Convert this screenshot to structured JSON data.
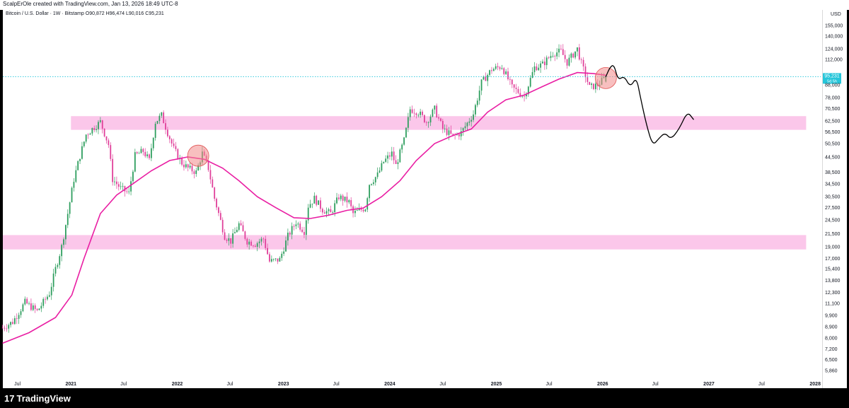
{
  "header": {
    "attribution": "ScalpErOle created with TradingView.com, Jan 13, 2026 18:49 UTC-8",
    "symbol_info": "Bitcoin / U.S. Dollar · 1W · Bitstamp  O90,872  H96,474  L90,016  C95,231"
  },
  "footer": {
    "logo_text": "TradingView",
    "logo_mark": "17"
  },
  "chart_data": {
    "type": "candlestick",
    "symbol": "Bitcoin / U.S. Dollar",
    "interval": "1W",
    "exchange": "Bitstamp",
    "ohlc": {
      "open": 90872,
      "high": 96474,
      "low": 90016,
      "close": 95231
    },
    "y_scale": "log",
    "y_unit": "USD",
    "ylim": [
      5200,
      170000
    ],
    "xlim": [
      "2020-05-12",
      "2028-01-20"
    ],
    "y_ticks": [
      155000,
      140000,
      124000,
      112000,
      100000,
      88000,
      78000,
      70500,
      62500,
      56500,
      50500,
      44500,
      38500,
      34500,
      30500,
      27500,
      24500,
      21500,
      19000,
      17000,
      15400,
      13800,
      12300,
      11100,
      9900,
      8900,
      8000,
      7200,
      6500,
      5860
    ],
    "y_tick_labels": [
      "155,000",
      "140,000",
      "124,000",
      "112,000",
      "100,000",
      "88,000",
      "78,000",
      "70,500",
      "62,500",
      "56,500",
      "50,500",
      "44,500",
      "38,500",
      "34,500",
      "30,500",
      "27,500",
      "24,500",
      "21,500",
      "19,000",
      "17,000",
      "15,400",
      "13,800",
      "12,300",
      "11,100",
      "9,900",
      "8,900",
      "8,000",
      "7,200",
      "6,500",
      "5,860"
    ],
    "x_ticks": [
      {
        "date": "2020-07-01",
        "label": "Jul",
        "bold": false
      },
      {
        "date": "2021-01-01",
        "label": "2021",
        "bold": true
      },
      {
        "date": "2021-07-01",
        "label": "Jul",
        "bold": false
      },
      {
        "date": "2022-01-01",
        "label": "2022",
        "bold": true
      },
      {
        "date": "2022-07-01",
        "label": "Jul",
        "bold": false
      },
      {
        "date": "2023-01-01",
        "label": "2023",
        "bold": true
      },
      {
        "date": "2023-07-01",
        "label": "Jul",
        "bold": false
      },
      {
        "date": "2024-01-01",
        "label": "2024",
        "bold": true
      },
      {
        "date": "2024-07-01",
        "label": "Jul",
        "bold": false
      },
      {
        "date": "2025-01-01",
        "label": "2025",
        "bold": true
      },
      {
        "date": "2025-07-01",
        "label": "Jul",
        "bold": false
      },
      {
        "date": "2026-01-01",
        "label": "2026",
        "bold": true
      },
      {
        "date": "2026-07-01",
        "label": "Jul",
        "bold": false
      },
      {
        "date": "2027-01-01",
        "label": "2027",
        "bold": true
      },
      {
        "date": "2027-07-01",
        "label": "Jul",
        "bold": false
      },
      {
        "date": "2028-01-01",
        "label": "2028",
        "bold": true
      }
    ],
    "price_path": [
      [
        "2020-05-11",
        8800
      ],
      [
        "2020-06-15",
        9300
      ],
      [
        "2020-07-27",
        11200
      ],
      [
        "2020-09-07",
        10300
      ],
      [
        "2020-10-19",
        12200
      ],
      [
        "2020-11-09",
        15400
      ],
      [
        "2020-11-30",
        19000
      ],
      [
        "2020-12-21",
        26000
      ],
      [
        "2021-01-11",
        36000
      ],
      [
        "2021-02-01",
        45000
      ],
      [
        "2021-02-22",
        55000
      ],
      [
        "2021-03-15",
        58000
      ],
      [
        "2021-04-12",
        62000
      ],
      [
        "2021-05-10",
        50000
      ],
      [
        "2021-05-24",
        36000
      ],
      [
        "2021-06-21",
        33000
      ],
      [
        "2021-07-19",
        31500
      ],
      [
        "2021-08-09",
        45000
      ],
      [
        "2021-09-06",
        47000
      ],
      [
        "2021-09-27",
        43000
      ],
      [
        "2021-10-18",
        62000
      ],
      [
        "2021-11-08",
        66000
      ],
      [
        "2021-11-29",
        56000
      ],
      [
        "2021-12-20",
        48000
      ],
      [
        "2022-01-17",
        42000
      ],
      [
        "2022-02-07",
        40000
      ],
      [
        "2022-03-07",
        38500
      ],
      [
        "2022-03-28",
        46000
      ],
      [
        "2022-04-18",
        40000
      ],
      [
        "2022-05-09",
        30000
      ],
      [
        "2022-06-13",
        21000
      ],
      [
        "2022-07-04",
        20000
      ],
      [
        "2022-08-01",
        23500
      ],
      [
        "2022-08-29",
        20000
      ],
      [
        "2022-09-26",
        19500
      ],
      [
        "2022-10-24",
        20500
      ],
      [
        "2022-11-14",
        16500
      ],
      [
        "2022-12-19",
        16800
      ],
      [
        "2023-01-16",
        21000
      ],
      [
        "2023-02-13",
        24000
      ],
      [
        "2023-03-13",
        22000
      ],
      [
        "2023-03-27",
        28000
      ],
      [
        "2023-04-17",
        30000
      ],
      [
        "2023-05-15",
        27000
      ],
      [
        "2023-06-12",
        26000
      ],
      [
        "2023-07-10",
        30500
      ],
      [
        "2023-08-14",
        29000
      ],
      [
        "2023-08-28",
        26000
      ],
      [
        "2023-10-09",
        27500
      ],
      [
        "2023-10-23",
        34500
      ],
      [
        "2023-11-20",
        37500
      ],
      [
        "2023-12-11",
        42500
      ],
      [
        "2024-01-08",
        46000
      ],
      [
        "2024-01-22",
        41000
      ],
      [
        "2024-02-19",
        52000
      ],
      [
        "2024-03-11",
        70000
      ],
      [
        "2024-04-08",
        68000
      ],
      [
        "2024-05-06",
        62000
      ],
      [
        "2024-06-03",
        70000
      ],
      [
        "2024-07-01",
        58000
      ],
      [
        "2024-08-05",
        54000
      ],
      [
        "2024-09-02",
        56000
      ],
      [
        "2024-10-14",
        67000
      ],
      [
        "2024-11-11",
        90000
      ],
      [
        "2024-12-16",
        102000
      ],
      [
        "2025-01-20",
        105000
      ],
      [
        "2025-02-24",
        86000
      ],
      [
        "2025-04-07",
        79000
      ],
      [
        "2025-05-12",
        104000
      ],
      [
        "2025-06-09",
        107000
      ],
      [
        "2025-07-14",
        119000
      ],
      [
        "2025-08-11",
        121000
      ],
      [
        "2025-09-01",
        109000
      ],
      [
        "2025-10-06",
        124000
      ],
      [
        "2025-10-20",
        108000
      ],
      [
        "2025-11-17",
        86000
      ],
      [
        "2025-12-15",
        88000
      ],
      [
        "2026-01-12",
        95231
      ]
    ],
    "moving_average": [
      [
        "2020-05-11",
        7600
      ],
      [
        "2020-08-10",
        8400
      ],
      [
        "2020-11-09",
        9700
      ],
      [
        "2021-01-04",
        12000
      ],
      [
        "2021-02-15",
        17000
      ],
      [
        "2021-04-12",
        26000
      ],
      [
        "2021-06-07",
        31000
      ],
      [
        "2021-08-02",
        34500
      ],
      [
        "2021-10-04",
        39000
      ],
      [
        "2021-12-06",
        43000
      ],
      [
        "2022-02-07",
        44500
      ],
      [
        "2022-04-04",
        43500
      ],
      [
        "2022-06-06",
        40000
      ],
      [
        "2022-08-01",
        35500
      ],
      [
        "2022-10-03",
        30500
      ],
      [
        "2022-12-05",
        27500
      ],
      [
        "2023-02-06",
        25000
      ],
      [
        "2023-04-03",
        24800
      ],
      [
        "2023-06-05",
        25600
      ],
      [
        "2023-08-07",
        26800
      ],
      [
        "2023-10-02",
        27400
      ],
      [
        "2023-12-04",
        30500
      ],
      [
        "2024-02-05",
        35500
      ],
      [
        "2024-04-01",
        43000
      ],
      [
        "2024-06-03",
        50500
      ],
      [
        "2024-08-05",
        54500
      ],
      [
        "2024-10-07",
        58000
      ],
      [
        "2024-12-02",
        68000
      ],
      [
        "2025-02-03",
        76500
      ],
      [
        "2025-04-07",
        80000
      ],
      [
        "2025-06-02",
        86000
      ],
      [
        "2025-08-04",
        93000
      ],
      [
        "2025-10-06",
        99000
      ],
      [
        "2025-12-01",
        98000
      ],
      [
        "2026-01-12",
        96500
      ]
    ],
    "projection_path": [
      [
        "2026-01-12",
        95231
      ],
      [
        "2026-01-26",
        104000
      ],
      [
        "2026-02-09",
        107000
      ],
      [
        "2026-02-23",
        92000
      ],
      [
        "2026-03-16",
        96000
      ],
      [
        "2026-04-06",
        86000
      ],
      [
        "2026-04-27",
        95000
      ],
      [
        "2026-05-11",
        78000
      ],
      [
        "2026-06-01",
        60000
      ],
      [
        "2026-06-22",
        49500
      ],
      [
        "2026-07-13",
        53000
      ],
      [
        "2026-08-03",
        56000
      ],
      [
        "2026-08-24",
        52500
      ],
      [
        "2026-09-21",
        58000
      ],
      [
        "2026-10-19",
        68500
      ],
      [
        "2026-11-09",
        63500
      ]
    ],
    "zones": [
      {
        "from": 57500,
        "to": 65500,
        "x_start": "2021-01-01",
        "x_end": "2027-12-01"
      },
      {
        "from": 18500,
        "to": 21200,
        "x_start": "2020-05-12",
        "x_end": "2027-12-01"
      }
    ],
    "highlights": [
      {
        "date": "2022-03-14",
        "value": 45000
      },
      {
        "date": "2026-01-12",
        "value": 94000
      }
    ],
    "last_price": {
      "value": 95231,
      "label": "95,231",
      "countdown": "5d 5h"
    },
    "colors": {
      "up": "#26a69a",
      "down": "#ef5fa7",
      "candle_up": "#2e9e5e",
      "candle_down": "#e0409a",
      "ma": "#e91ea3",
      "zone": "#fbc7ea",
      "projection": "#000000",
      "highlight": "#f28b8b",
      "price_tag": "#26c6da"
    },
    "grid": false
  }
}
